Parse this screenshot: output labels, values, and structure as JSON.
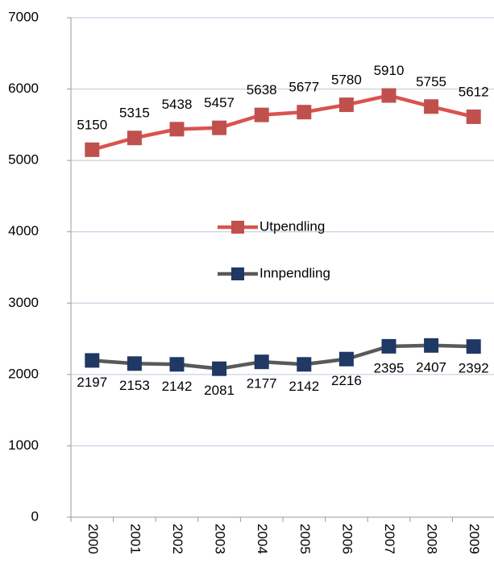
{
  "chart_data": {
    "type": "line",
    "categories": [
      "2000",
      "2001",
      "2002",
      "2003",
      "2004",
      "2005",
      "2006",
      "2007",
      "2008",
      "2009"
    ],
    "series": [
      {
        "name": "Utpendling",
        "color": "#c0504d",
        "line_color": "#d9534f",
        "values": [
          5150,
          5315,
          5438,
          5457,
          5638,
          5677,
          5780,
          5910,
          5755,
          5612
        ],
        "label_position": "above"
      },
      {
        "name": "Innpendling",
        "color": "#1f3864",
        "line_color": "#595959",
        "values": [
          2197,
          2153,
          2142,
          2081,
          2177,
          2142,
          2216,
          2395,
          2407,
          2392
        ],
        "label_position": "below"
      }
    ],
    "ylim": [
      0,
      7000
    ],
    "yticks": [
      0,
      1000,
      2000,
      3000,
      4000,
      5000,
      6000,
      7000
    ],
    "grid": true,
    "legend": "center"
  }
}
